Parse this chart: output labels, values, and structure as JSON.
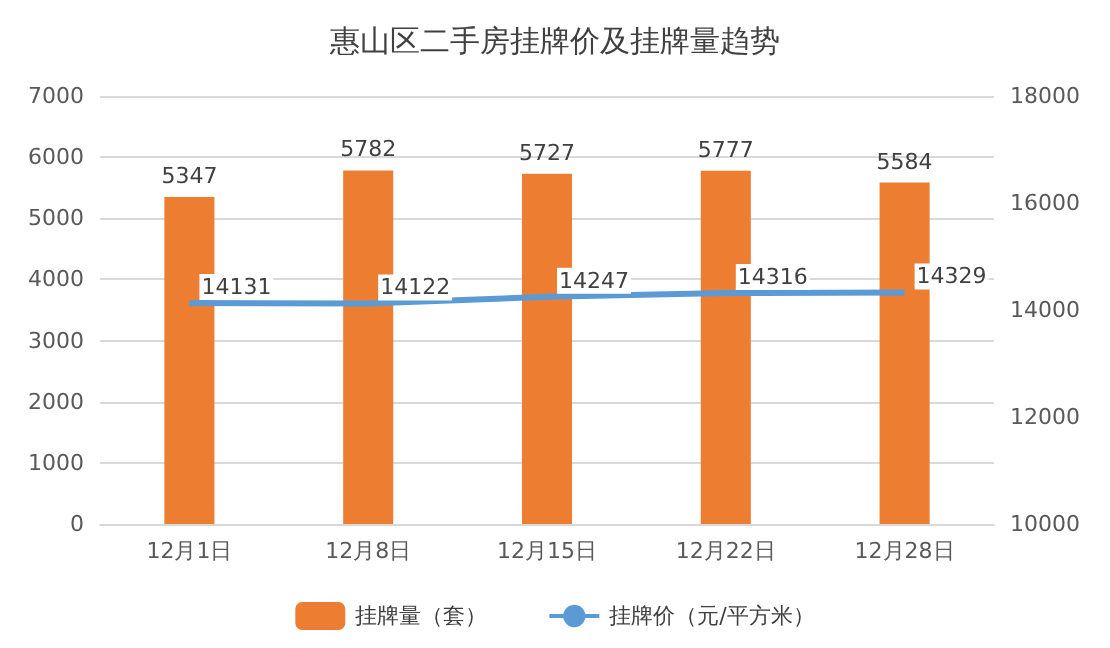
{
  "chart_data": {
    "type": "bar",
    "title": "惠山区二手房挂牌价及挂牌量趋势",
    "categories": [
      "12月1日",
      "12月8日",
      "12月15日",
      "12月22日",
      "12月28日"
    ],
    "series": [
      {
        "name": "挂牌量（套）",
        "color": "#ed7d31",
        "values": [
          5347,
          5782,
          5727,
          5777,
          5584
        ]
      },
      {
        "name": "挂牌价（元/平方米）",
        "type": "line",
        "axis": "y2",
        "color": "#5b9bd5",
        "values": [
          14131,
          14122,
          14247,
          14316,
          14329
        ]
      }
    ],
    "ylim": [
      0,
      7000
    ],
    "yticks": [
      0,
      1000,
      2000,
      3000,
      4000,
      5000,
      6000,
      7000
    ],
    "y2lim": [
      10000,
      18000
    ],
    "y2ticks": [
      10000,
      12000,
      14000,
      16000,
      18000
    ],
    "grid": "y",
    "legend": "bottom",
    "data_labels": true,
    "marker": "none",
    "line_style": "solid"
  }
}
